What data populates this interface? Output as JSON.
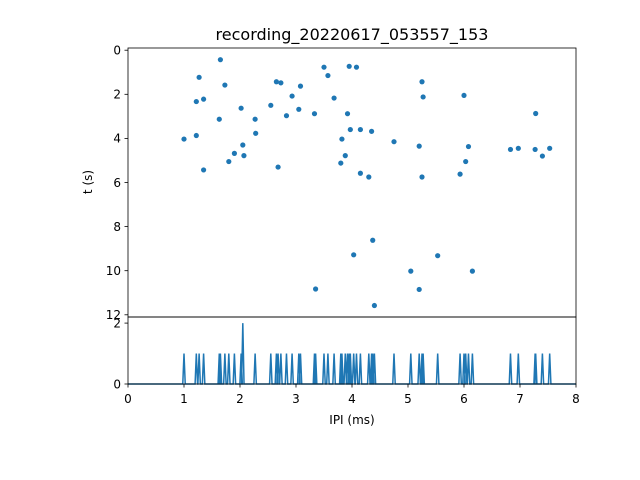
{
  "chart_data": [
    {
      "type": "scatter",
      "title": "recording_20220617_053557_153",
      "xlabel": "",
      "ylabel": "t (s)",
      "xlim": [
        0,
        8
      ],
      "ylim": [
        12.1,
        -0.1
      ],
      "y_inverted": true,
      "yticks": [
        0,
        2,
        4,
        6,
        8,
        10,
        12
      ],
      "color": "#1f77b4",
      "points": [
        {
          "x": 1.0,
          "y": 4.03
        },
        {
          "x": 1.22,
          "y": 3.87
        },
        {
          "x": 1.22,
          "y": 2.33
        },
        {
          "x": 1.27,
          "y": 1.23
        },
        {
          "x": 1.35,
          "y": 2.22
        },
        {
          "x": 1.35,
          "y": 5.43
        },
        {
          "x": 1.63,
          "y": 3.13
        },
        {
          "x": 1.65,
          "y": 0.43
        },
        {
          "x": 1.73,
          "y": 1.58
        },
        {
          "x": 1.8,
          "y": 5.05
        },
        {
          "x": 1.9,
          "y": 4.68
        },
        {
          "x": 2.02,
          "y": 2.63
        },
        {
          "x": 2.05,
          "y": 4.3
        },
        {
          "x": 2.07,
          "y": 4.78
        },
        {
          "x": 2.27,
          "y": 3.13
        },
        {
          "x": 2.28,
          "y": 3.77
        },
        {
          "x": 2.55,
          "y": 2.5
        },
        {
          "x": 2.65,
          "y": 1.43
        },
        {
          "x": 2.68,
          "y": 5.3
        },
        {
          "x": 2.73,
          "y": 1.48
        },
        {
          "x": 2.83,
          "y": 2.97
        },
        {
          "x": 2.93,
          "y": 2.08
        },
        {
          "x": 3.05,
          "y": 2.68
        },
        {
          "x": 3.08,
          "y": 1.63
        },
        {
          "x": 3.33,
          "y": 2.88
        },
        {
          "x": 3.35,
          "y": 10.83
        },
        {
          "x": 3.5,
          "y": 0.77
        },
        {
          "x": 3.57,
          "y": 1.15
        },
        {
          "x": 3.68,
          "y": 2.17
        },
        {
          "x": 3.8,
          "y": 5.12
        },
        {
          "x": 3.82,
          "y": 4.03
        },
        {
          "x": 3.88,
          "y": 4.78
        },
        {
          "x": 3.92,
          "y": 2.88
        },
        {
          "x": 3.95,
          "y": 0.73
        },
        {
          "x": 3.97,
          "y": 3.6
        },
        {
          "x": 4.03,
          "y": 9.28
        },
        {
          "x": 4.08,
          "y": 0.77
        },
        {
          "x": 4.15,
          "y": 3.6
        },
        {
          "x": 4.15,
          "y": 5.58
        },
        {
          "x": 4.3,
          "y": 5.75
        },
        {
          "x": 4.35,
          "y": 3.68
        },
        {
          "x": 4.37,
          "y": 8.62
        },
        {
          "x": 4.4,
          "y": 11.58
        },
        {
          "x": 4.75,
          "y": 4.15
        },
        {
          "x": 5.05,
          "y": 10.02
        },
        {
          "x": 5.2,
          "y": 4.35
        },
        {
          "x": 5.2,
          "y": 10.85
        },
        {
          "x": 5.25,
          "y": 1.43
        },
        {
          "x": 5.27,
          "y": 2.12
        },
        {
          "x": 5.25,
          "y": 5.75
        },
        {
          "x": 5.53,
          "y": 9.32
        },
        {
          "x": 5.93,
          "y": 5.62
        },
        {
          "x": 6.0,
          "y": 2.05
        },
        {
          "x": 6.03,
          "y": 5.05
        },
        {
          "x": 6.08,
          "y": 4.37
        },
        {
          "x": 6.15,
          "y": 10.02
        },
        {
          "x": 6.83,
          "y": 4.5
        },
        {
          "x": 6.97,
          "y": 4.45
        },
        {
          "x": 7.27,
          "y": 4.5
        },
        {
          "x": 7.28,
          "y": 2.87
        },
        {
          "x": 7.4,
          "y": 4.8
        },
        {
          "x": 7.53,
          "y": 4.45
        }
      ]
    },
    {
      "type": "line",
      "title": "",
      "xlabel": "IPI (ms)",
      "ylabel": "",
      "xlim": [
        0,
        8
      ],
      "ylim": [
        0,
        2.2
      ],
      "xticks": [
        0,
        1,
        2,
        3,
        4,
        5,
        6,
        7,
        8
      ],
      "yticks": [
        0,
        2
      ],
      "color": "#1f77b4",
      "description_of_values": "histogram counts per IPI bin; one spike per scatter point (count 1), with a count of 2 near x=2.05",
      "spikes": [
        {
          "x": 1.0,
          "count": 1
        },
        {
          "x": 1.22,
          "count": 1
        },
        {
          "x": 1.27,
          "count": 1
        },
        {
          "x": 1.35,
          "count": 1
        },
        {
          "x": 1.63,
          "count": 1
        },
        {
          "x": 1.65,
          "count": 1
        },
        {
          "x": 1.73,
          "count": 1
        },
        {
          "x": 1.8,
          "count": 1
        },
        {
          "x": 1.9,
          "count": 1
        },
        {
          "x": 2.02,
          "count": 1
        },
        {
          "x": 2.05,
          "count": 2
        },
        {
          "x": 2.27,
          "count": 1
        },
        {
          "x": 2.55,
          "count": 1
        },
        {
          "x": 2.65,
          "count": 1
        },
        {
          "x": 2.68,
          "count": 1
        },
        {
          "x": 2.73,
          "count": 1
        },
        {
          "x": 2.83,
          "count": 1
        },
        {
          "x": 2.93,
          "count": 1
        },
        {
          "x": 3.05,
          "count": 1
        },
        {
          "x": 3.08,
          "count": 1
        },
        {
          "x": 3.33,
          "count": 1
        },
        {
          "x": 3.35,
          "count": 1
        },
        {
          "x": 3.5,
          "count": 1
        },
        {
          "x": 3.57,
          "count": 1
        },
        {
          "x": 3.68,
          "count": 1
        },
        {
          "x": 3.8,
          "count": 1
        },
        {
          "x": 3.82,
          "count": 1
        },
        {
          "x": 3.88,
          "count": 1
        },
        {
          "x": 3.92,
          "count": 1
        },
        {
          "x": 3.95,
          "count": 1
        },
        {
          "x": 3.97,
          "count": 1
        },
        {
          "x": 4.03,
          "count": 1
        },
        {
          "x": 4.08,
          "count": 1
        },
        {
          "x": 4.15,
          "count": 1
        },
        {
          "x": 4.3,
          "count": 1
        },
        {
          "x": 4.35,
          "count": 1
        },
        {
          "x": 4.37,
          "count": 1
        },
        {
          "x": 4.4,
          "count": 1
        },
        {
          "x": 4.75,
          "count": 1
        },
        {
          "x": 5.05,
          "count": 1
        },
        {
          "x": 5.2,
          "count": 1
        },
        {
          "x": 5.25,
          "count": 1
        },
        {
          "x": 5.27,
          "count": 1
        },
        {
          "x": 5.53,
          "count": 1
        },
        {
          "x": 5.93,
          "count": 1
        },
        {
          "x": 6.0,
          "count": 1
        },
        {
          "x": 6.03,
          "count": 1
        },
        {
          "x": 6.08,
          "count": 1
        },
        {
          "x": 6.15,
          "count": 1
        },
        {
          "x": 6.83,
          "count": 1
        },
        {
          "x": 6.97,
          "count": 1
        },
        {
          "x": 7.27,
          "count": 1
        },
        {
          "x": 7.28,
          "count": 1
        },
        {
          "x": 7.4,
          "count": 1
        },
        {
          "x": 7.53,
          "count": 1
        }
      ]
    }
  ]
}
